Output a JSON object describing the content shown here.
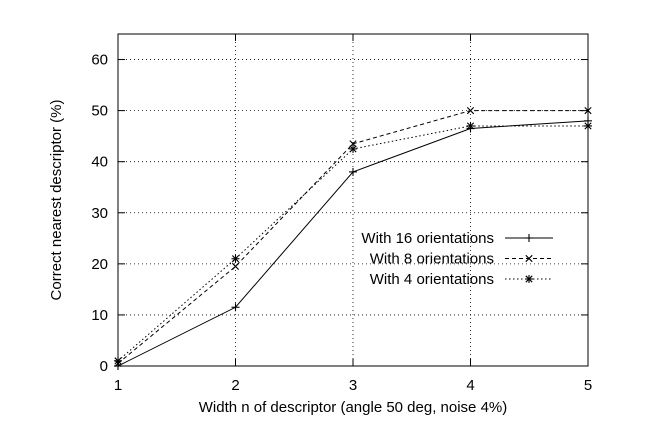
{
  "chart_data": {
    "type": "line",
    "title": "",
    "xlabel": "Width n of descriptor (angle 50 deg, noise 4%)",
    "ylabel": "Correct nearest descriptor (%)",
    "x": [
      1,
      2,
      3,
      4,
      5
    ],
    "xlim": [
      1,
      5
    ],
    "ylim": [
      0,
      65
    ],
    "xticks": [
      1,
      2,
      3,
      4,
      5
    ],
    "yticks": [
      0,
      10,
      20,
      30,
      40,
      50,
      60
    ],
    "grid": true,
    "legend_position": "center-right",
    "series": [
      {
        "name": "With 16 orientations",
        "values": [
          0,
          11.5,
          38,
          46.5,
          48
        ],
        "line_style": "solid",
        "marker": "plus"
      },
      {
        "name": "With 8 orientations",
        "values": [
          0.5,
          19.5,
          43.5,
          50,
          50
        ],
        "line_style": "dashed",
        "marker": "cross"
      },
      {
        "name": "With 4 orientations",
        "values": [
          1,
          21,
          42.5,
          47,
          47
        ],
        "line_style": "dotted",
        "marker": "star"
      }
    ]
  }
}
